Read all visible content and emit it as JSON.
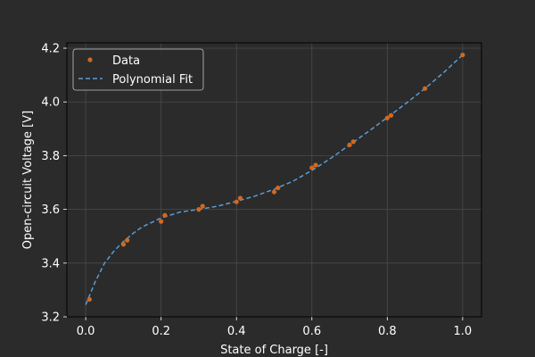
{
  "chart_data": {
    "type": "scatter",
    "xlabel": "State of Charge [-]",
    "ylabel": "Open-circuit Voltage [V]",
    "xlim": [
      -0.05,
      1.05
    ],
    "ylim": [
      3.2,
      4.22
    ],
    "xticks": [
      0.0,
      0.2,
      0.4,
      0.6,
      0.8,
      1.0
    ],
    "xtick_labels": [
      "0.0",
      "0.2",
      "0.4",
      "0.6",
      "0.8",
      "1.0"
    ],
    "yticks": [
      3.2,
      3.4,
      3.6,
      3.8,
      4.0,
      4.2
    ],
    "ytick_labels": [
      "3.2",
      "3.4",
      "3.6",
      "3.8",
      "4.0",
      "4.2"
    ],
    "grid": true,
    "legend_position": "top-left",
    "series": [
      {
        "name": "Data",
        "kind": "scatter",
        "color": "#d2691e",
        "x": [
          0.01,
          0.1,
          0.11,
          0.2,
          0.21,
          0.3,
          0.31,
          0.4,
          0.41,
          0.5,
          0.51,
          0.6,
          0.61,
          0.7,
          0.71,
          0.8,
          0.81,
          0.9,
          1.0
        ],
        "y": [
          3.265,
          3.47,
          3.485,
          3.555,
          3.578,
          3.6,
          3.612,
          3.628,
          3.642,
          3.665,
          3.68,
          3.755,
          3.765,
          3.84,
          3.852,
          3.94,
          3.95,
          4.05,
          4.175
        ]
      },
      {
        "name": "Polynomial Fit",
        "kind": "line",
        "style": "dashed",
        "color": "#5b9bd5",
        "x": [
          0.0,
          0.025,
          0.05,
          0.075,
          0.1,
          0.125,
          0.15,
          0.2,
          0.25,
          0.3,
          0.35,
          0.4,
          0.45,
          0.5,
          0.55,
          0.6,
          0.65,
          0.7,
          0.75,
          0.8,
          0.85,
          0.9,
          0.95,
          1.0
        ],
        "y": [
          3.245,
          3.33,
          3.4,
          3.445,
          3.48,
          3.51,
          3.535,
          3.568,
          3.59,
          3.6,
          3.612,
          3.63,
          3.65,
          3.675,
          3.705,
          3.745,
          3.79,
          3.84,
          3.89,
          3.942,
          3.995,
          4.05,
          4.11,
          4.175
        ]
      }
    ]
  }
}
